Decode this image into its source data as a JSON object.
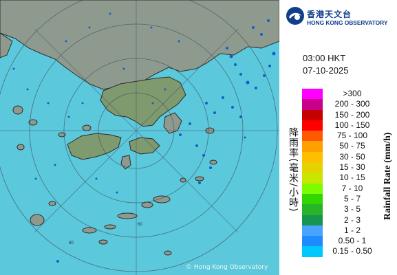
{
  "map": {
    "copyright": "© Hong Kong Observatory",
    "sea_color": "#5cc8dc",
    "land_color": "#8f9a8e",
    "ring_labels": [
      "60",
      "80"
    ]
  },
  "logo": {
    "icon": "hko-logo-icon",
    "name_cn": "香港天文台",
    "name_en": "HONG KONG OBSERVATORY"
  },
  "time": "03:00 HKT",
  "date": "07-10-2025",
  "legend": {
    "title_cn": "降雨率(毫米/小時)",
    "title_en": "Rainfall Rate (mm/h)",
    "items": [
      {
        "label": ">300",
        "color": "#ff00ff"
      },
      {
        "label": "200 - 300",
        "color": "#c8008c"
      },
      {
        "label": "150 - 200",
        "color": "#c40000"
      },
      {
        "label": "100 - 150",
        "color": "#ff0000"
      },
      {
        "label": "75 - 100",
        "color": "#ff5a00"
      },
      {
        "label": "50 - 75",
        "color": "#ffa000"
      },
      {
        "label": "30 - 50",
        "color": "#ffbe00"
      },
      {
        "label": "15 - 30",
        "color": "#e6d200"
      },
      {
        "label": "10 - 15",
        "color": "#c8e600"
      },
      {
        "label": "7 - 10",
        "color": "#7cfc00"
      },
      {
        "label": "5 - 7",
        "color": "#32d700"
      },
      {
        "label": "3 - 5",
        "color": "#28b428"
      },
      {
        "label": "2 - 3",
        "color": "#149650"
      },
      {
        "label": "1 - 2",
        "color": "#4aa3ff"
      },
      {
        "label": "0.50 - 1",
        "color": "#1e8cff"
      },
      {
        "label": "0.15 - 0.50",
        "color": "#00c8ff"
      }
    ]
  }
}
